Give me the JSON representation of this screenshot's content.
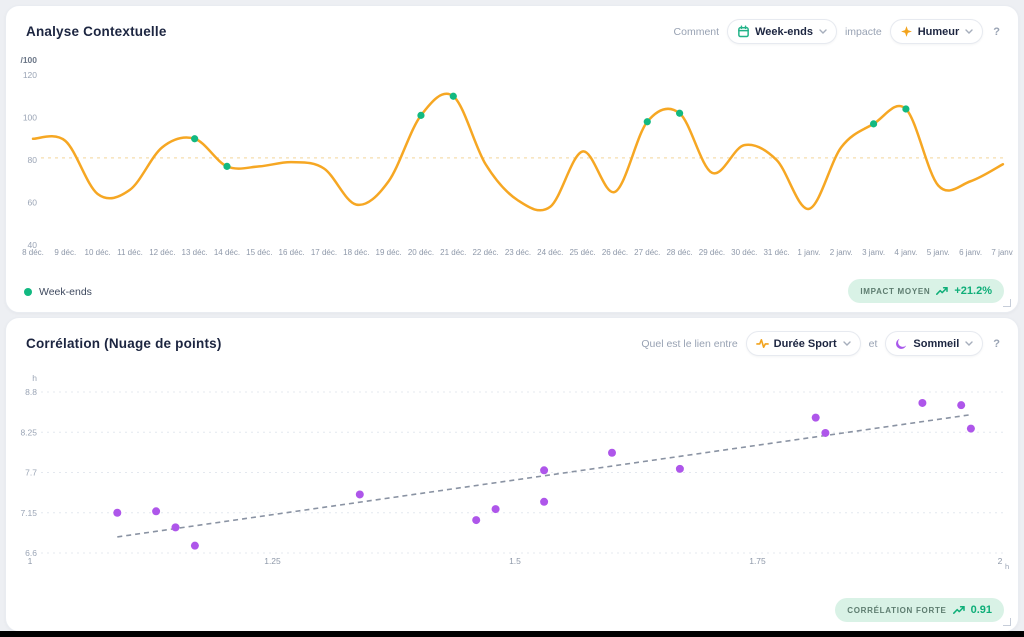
{
  "panel1": {
    "title": "Analyse Contextuelle",
    "controls": {
      "prefix": "Comment",
      "factor": "Week-ends",
      "middle": "impacte",
      "metric": "Humeur",
      "help": "?"
    },
    "legend": "Week-ends",
    "badge": {
      "label": "IMPACT MOYEN",
      "value": "+21.2%"
    }
  },
  "panel2": {
    "title": "Corrélation (Nuage de points)",
    "controls": {
      "prefix": "Quel est le lien entre",
      "var1": "Durée Sport",
      "middle": "et",
      "var2": "Sommeil",
      "help": "?"
    },
    "badge": {
      "label": "CORRÉLATION FORTE",
      "value": "0.91"
    }
  },
  "icons": {
    "factor": "calendar-icon",
    "metric": "sparkles-icon",
    "var1": "activity-icon",
    "var2": "moon-icon",
    "badge": "trending-up-icon",
    "pill": "chevron-down-icon"
  },
  "colors": {
    "accent_orange": "#f6a723",
    "accent_green": "#12b981",
    "accent_purple": "#ae56ea",
    "badge_bg": "#d9f2e6",
    "badge_value": "#0eae78",
    "tick_text": "#9aa4b5",
    "title_text": "#1c2540"
  },
  "chart_data": [
    {
      "type": "line",
      "series_name": "Humeur",
      "highlight_series": "Week-ends",
      "y_unit": "/100",
      "y_ticks": [
        120,
        100,
        80,
        60,
        40
      ],
      "ylim": [
        40,
        120
      ],
      "average_line": 81,
      "x_labels": [
        "8 déc.",
        "9 déc.",
        "10 déc.",
        "11 déc.",
        "12 déc.",
        "13 déc.",
        "14 déc.",
        "15 déc.",
        "16 déc.",
        "17 déc.",
        "18 déc.",
        "19 déc.",
        "20 déc.",
        "21 déc.",
        "22 déc.",
        "23 déc.",
        "24 déc.",
        "25 déc.",
        "26 déc.",
        "27 déc.",
        "28 déc.",
        "29 déc.",
        "30 déc.",
        "31 déc.",
        "1 janv.",
        "2 janv.",
        "3 janv.",
        "4 janv.",
        "5 janv.",
        "6 janv.",
        "7 janv."
      ],
      "values": [
        90,
        89,
        64,
        66,
        86,
        90,
        77,
        77,
        79,
        76,
        59,
        70,
        101,
        110,
        78,
        61,
        58,
        84,
        65,
        98,
        102,
        74,
        87,
        80,
        57,
        86,
        97,
        104,
        68,
        70,
        78
      ],
      "weekend_indices": [
        5,
        6,
        12,
        13,
        19,
        20,
        26,
        27
      ],
      "line_color": "#f6a723",
      "dot_color": "#12b981",
      "avg_line_color": "#f6ddae"
    },
    {
      "type": "scatter",
      "xlabel": "Durée Sport",
      "ylabel": "Sommeil",
      "x_unit": "h",
      "y_unit": "h",
      "x_ticks": [
        1,
        1.25,
        1.5,
        1.75,
        2
      ],
      "y_ticks": [
        8.8,
        8.25,
        7.7,
        7.15,
        6.6
      ],
      "xlim": [
        1,
        2
      ],
      "ylim": [
        6.6,
        8.8
      ],
      "points": [
        [
          1.09,
          7.15
        ],
        [
          1.13,
          7.17
        ],
        [
          1.15,
          6.95
        ],
        [
          1.17,
          6.7
        ],
        [
          1.34,
          7.4
        ],
        [
          1.46,
          7.05
        ],
        [
          1.48,
          7.2
        ],
        [
          1.53,
          7.73
        ],
        [
          1.53,
          7.3
        ],
        [
          1.6,
          7.97
        ],
        [
          1.67,
          7.75
        ],
        [
          1.81,
          8.45
        ],
        [
          1.82,
          8.24
        ],
        [
          1.92,
          8.65
        ],
        [
          1.96,
          8.62
        ],
        [
          1.97,
          8.3
        ]
      ],
      "trend_line": {
        "x1": 1.09,
        "y1": 6.82,
        "x2": 1.97,
        "y2": 8.49
      },
      "correlation": 0.91,
      "dot_color": "#ae56ea",
      "trend_color": "#8a93a3",
      "grid_color": "#e4e8ef"
    }
  ]
}
